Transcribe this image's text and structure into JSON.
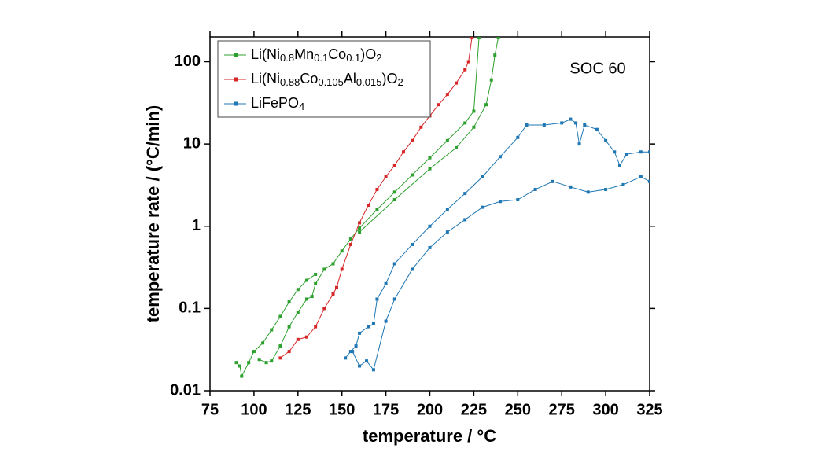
{
  "chart_data": {
    "type": "line",
    "log_y": true,
    "xlabel": "temperature / °C",
    "ylabel": "temperature rate / (°C/min)",
    "annotation": "SOC 60",
    "xlim": [
      75,
      325
    ],
    "xticks": [
      75,
      100,
      125,
      150,
      175,
      200,
      225,
      250,
      275,
      300,
      325
    ],
    "ylim": [
      0.01,
      200
    ],
    "yticks": [
      0.01,
      0.1,
      1,
      10,
      100
    ],
    "legend": "upper left",
    "series": [
      {
        "name": "Li(Ni0.8Mn0.1Co0.1)O2",
        "color": "#2ca02c",
        "x": [
          90,
          92,
          93,
          97,
          100,
          105,
          110,
          115,
          120,
          125,
          130,
          135,
          100,
          103,
          107,
          110,
          115,
          120,
          125,
          130,
          133,
          135,
          140,
          145,
          150,
          155,
          160,
          170,
          180,
          190,
          200,
          210,
          220,
          225,
          228,
          150,
          160,
          180,
          200,
          215,
          225,
          232,
          235,
          237,
          239
        ],
        "values": [
          0.022,
          0.02,
          0.015,
          0.022,
          0.03,
          0.038,
          0.055,
          0.08,
          0.12,
          0.17,
          0.22,
          0.26,
          null,
          0.024,
          0.022,
          0.023,
          0.035,
          0.06,
          0.09,
          0.13,
          0.14,
          0.2,
          0.3,
          0.35,
          0.5,
          0.7,
          0.95,
          1.6,
          2.6,
          4.2,
          6.8,
          11,
          18,
          25,
          200,
          null,
          0.85,
          2.1,
          5,
          9,
          16,
          30,
          60,
          120,
          200
        ]
      },
      {
        "name": "Li(Ni0.88Co0.105Al0.015)O2",
        "color": "#d62728",
        "x": [
          115,
          120,
          125,
          130,
          135,
          140,
          145,
          147,
          150,
          155,
          160,
          165,
          170,
          175,
          180,
          185,
          190,
          195,
          200,
          205,
          210,
          215,
          220,
          222,
          224
        ],
        "values": [
          0.025,
          0.03,
          0.042,
          0.045,
          0.06,
          0.1,
          0.15,
          0.18,
          0.3,
          0.6,
          1.1,
          1.8,
          2.8,
          4,
          5.5,
          8,
          11,
          16,
          22,
          30,
          40,
          55,
          80,
          100,
          200
        ]
      },
      {
        "name": "LiFePO4",
        "color": "#1f77b4",
        "x": [
          152,
          155,
          158,
          160,
          165,
          168,
          170,
          175,
          180,
          190,
          200,
          210,
          220,
          230,
          240,
          250,
          255,
          265,
          275,
          280,
          283,
          285,
          288,
          295,
          300,
          305,
          308,
          312,
          320,
          325,
          152,
          156,
          160,
          164,
          168,
          175,
          180,
          190,
          200,
          210,
          220,
          230,
          240,
          250,
          260,
          270,
          280,
          290,
          300,
          310,
          320,
          325
        ],
        "values": [
          0.025,
          0.03,
          0.035,
          0.05,
          0.06,
          0.065,
          0.13,
          0.2,
          0.35,
          0.6,
          1,
          1.6,
          2.5,
          4,
          7,
          12,
          17,
          17,
          18,
          20,
          18,
          10,
          17,
          15,
          11,
          8,
          5.5,
          7.5,
          8,
          8,
          null,
          0.03,
          0.02,
          0.023,
          0.018,
          0.07,
          0.13,
          0.3,
          0.55,
          0.85,
          1.2,
          1.7,
          2,
          2.1,
          2.8,
          3.5,
          3,
          2.6,
          2.8,
          3.2,
          4,
          3.5
        ]
      }
    ]
  }
}
